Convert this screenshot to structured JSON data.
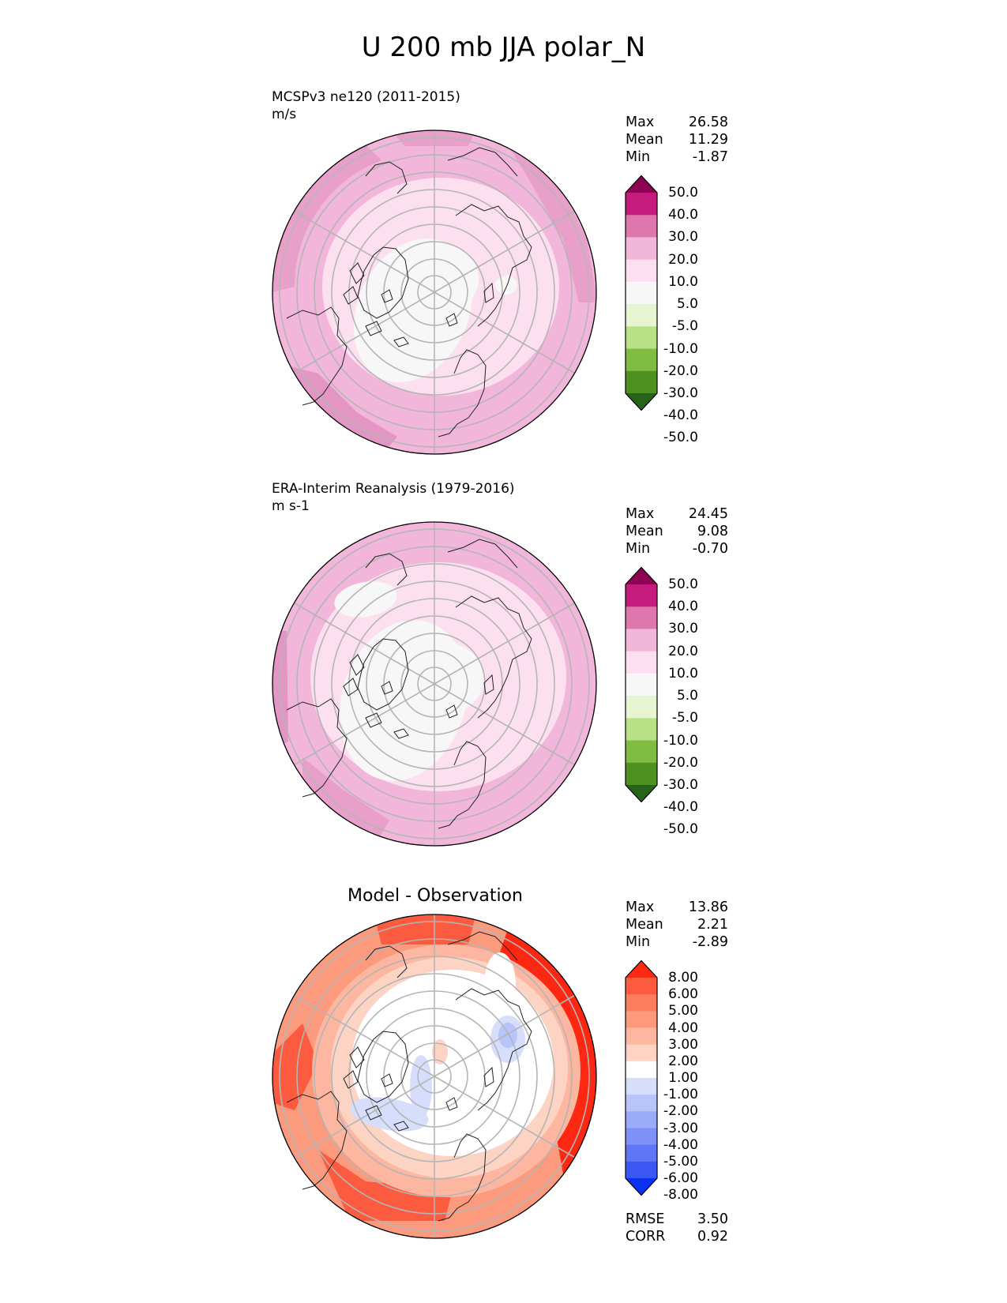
{
  "title": "U 200 mb JJA polar_N",
  "panels": [
    {
      "id": "test",
      "name": "MCSPv3 ne120 (2011-2015)",
      "units": "m/s",
      "stats": {
        "max": "26.58",
        "mean": "11.29",
        "min": "-1.87"
      },
      "colorbar": {
        "levels": [
          "50.0",
          "40.0",
          "30.0",
          "20.0",
          "10.0",
          "5.0",
          "-5.0",
          "-10.0",
          "-20.0",
          "-30.0",
          "-40.0",
          "-50.0"
        ],
        "colors": [
          "#8e0152",
          "#c51b7d",
          "#de77ae",
          "#f1b6da",
          "#fde0ef",
          "#f7f7f7",
          "#e6f5d0",
          "#b8e186",
          "#7fbc41",
          "#4d9221",
          "#276419"
        ]
      }
    },
    {
      "id": "ref",
      "name": "ERA-Interim Reanalysis (1979-2016)",
      "units": "m s-1",
      "stats": {
        "max": "24.45",
        "mean": "9.08",
        "min": "-0.70"
      },
      "colorbar": {
        "levels": [
          "50.0",
          "40.0",
          "30.0",
          "20.0",
          "10.0",
          "5.0",
          "-5.0",
          "-10.0",
          "-20.0",
          "-30.0",
          "-40.0",
          "-50.0"
        ],
        "colors": [
          "#8e0152",
          "#c51b7d",
          "#de77ae",
          "#f1b6da",
          "#fde0ef",
          "#f7f7f7",
          "#e6f5d0",
          "#b8e186",
          "#7fbc41",
          "#4d9221",
          "#276419"
        ]
      }
    },
    {
      "id": "diff",
      "name": "Model - Observation",
      "stats": {
        "max": "13.86",
        "mean": "2.21",
        "min": "-2.89"
      },
      "metrics": {
        "rmse_label": "RMSE",
        "rmse": "3.50",
        "corr_label": "CORR",
        "corr": "0.92"
      },
      "colorbar": {
        "levels": [
          "8.00",
          "6.00",
          "5.00",
          "4.00",
          "3.00",
          "2.00",
          "1.00",
          "-1.00",
          "-2.00",
          "-3.00",
          "-4.00",
          "-5.00",
          "-6.00",
          "-8.00"
        ],
        "colors": [
          "#fe2712",
          "#fc5b3f",
          "#fb7d5e",
          "#fc9a7d",
          "#fdb6a0",
          "#fdd3c3",
          "#ffffff",
          "#d6defc",
          "#b8c5fb",
          "#9aabfa",
          "#7d91f8",
          "#5f76f5",
          "#3a57f3",
          "#0a30f0"
        ]
      }
    }
  ],
  "stat_labels": {
    "max": "Max",
    "mean": "Mean",
    "min": "Min"
  }
}
